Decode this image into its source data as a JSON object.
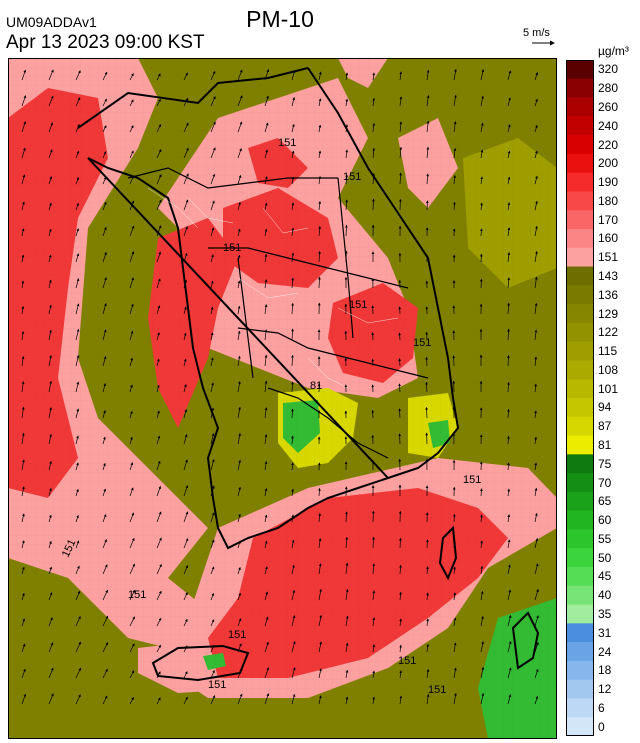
{
  "header": {
    "model_id": "UM09ADDAv1",
    "datetime": "Apr 13 2023 09:00 KST",
    "title": "PM-10"
  },
  "vector_key": {
    "label": "5 m/s",
    "magnitude_ms": 5
  },
  "legend": {
    "unit": "µg/m³",
    "levels": [
      {
        "label": "320",
        "color": "#5a0000"
      },
      {
        "label": "280",
        "color": "#8a0000"
      },
      {
        "label": "260",
        "color": "#aa0000"
      },
      {
        "label": "240",
        "color": "#c20000"
      },
      {
        "label": "220",
        "color": "#d80000"
      },
      {
        "label": "200",
        "color": "#ea1010"
      },
      {
        "label": "190",
        "color": "#f52a2a"
      },
      {
        "label": "180",
        "color": "#f84848"
      },
      {
        "label": "170",
        "color": "#fa6666"
      },
      {
        "label": "160",
        "color": "#fb8484"
      },
      {
        "label": "151",
        "color": "#fca0a0"
      },
      {
        "label": "143",
        "color": "#6e6e00"
      },
      {
        "label": "136",
        "color": "#7a7a00"
      },
      {
        "label": "129",
        "color": "#868600"
      },
      {
        "label": "122",
        "color": "#929200"
      },
      {
        "label": "115",
        "color": "#9e9e00"
      },
      {
        "label": "108",
        "color": "#aaaa00"
      },
      {
        "label": "101",
        "color": "#b8b800"
      },
      {
        "label": "94",
        "color": "#c6c600"
      },
      {
        "label": "87",
        "color": "#d6d600"
      },
      {
        "label": "81",
        "color": "#ecec00"
      },
      {
        "label": "75",
        "color": "#0f7a0f"
      },
      {
        "label": "70",
        "color": "#148f14"
      },
      {
        "label": "65",
        "color": "#1aa31a"
      },
      {
        "label": "60",
        "color": "#22b522"
      },
      {
        "label": "55",
        "color": "#2cc62c"
      },
      {
        "label": "50",
        "color": "#3cd43c"
      },
      {
        "label": "45",
        "color": "#55dd55"
      },
      {
        "label": "40",
        "color": "#78e478"
      },
      {
        "label": "35",
        "color": "#a0eda0"
      },
      {
        "label": "31",
        "color": "#4a8ee0"
      },
      {
        "label": "24",
        "color": "#6aa4e6"
      },
      {
        "label": "18",
        "color": "#86b6ec"
      },
      {
        "label": "12",
        "color": "#a2c8f0"
      },
      {
        "label": "6",
        "color": "#bcd8f4"
      },
      {
        "label": "0",
        "color": "#d2e6f8"
      }
    ]
  },
  "contours": [
    "151",
    "151",
    "151",
    "151",
    "151",
    "151",
    "151",
    "151",
    "151",
    "151",
    "151",
    "151",
    "81"
  ],
  "colors": {
    "sea_background": "#808000",
    "land_olive": "#8c8c00",
    "high_pink": "#fca0a0",
    "hotspot_red": "#f03838",
    "yellow": "#d8d800",
    "green": "#33bb33",
    "coastline": "#000000",
    "admin_boundary": "#ffffff"
  }
}
